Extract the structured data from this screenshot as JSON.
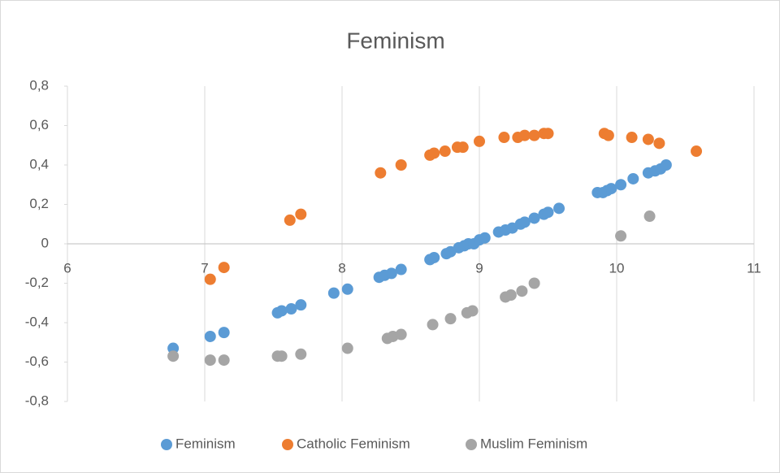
{
  "chart_data": {
    "type": "scatter",
    "title": "Feminism",
    "xlim": [
      6,
      11
    ],
    "xticks": [
      6,
      7,
      8,
      9,
      10,
      11
    ],
    "ylim": [
      -0.8,
      0.8
    ],
    "yticks": [
      {
        "value": -0.8,
        "label": "-0,8"
      },
      {
        "value": -0.6,
        "label": "-0,6"
      },
      {
        "value": -0.4,
        "label": "-0,4"
      },
      {
        "value": -0.2,
        "label": "-0,2"
      },
      {
        "value": 0,
        "label": "0"
      },
      {
        "value": 0.2,
        "label": "0,2"
      },
      {
        "value": 0.4,
        "label": "0,4"
      },
      {
        "value": 0.6,
        "label": "0,6"
      },
      {
        "value": 0.8,
        "label": "0,8"
      }
    ],
    "grid": "x",
    "legend": "bottom",
    "series": [
      {
        "name": "Feminism",
        "color": "#5b9bd5",
        "x": [
          6.77,
          7.04,
          7.14,
          7.53,
          7.56,
          7.63,
          7.7,
          7.94,
          8.04,
          8.27,
          8.31,
          8.36,
          8.43,
          8.64,
          8.67,
          8.76,
          8.79,
          8.85,
          8.89,
          8.92,
          8.96,
          9.0,
          9.04,
          9.14,
          9.19,
          9.24,
          9.3,
          9.33,
          9.4,
          9.47,
          9.5,
          9.58,
          9.86,
          9.9,
          9.93,
          9.96,
          10.03,
          10.12,
          10.23,
          10.28,
          10.32,
          10.36
        ],
        "values": [
          -0.53,
          -0.47,
          -0.45,
          -0.35,
          -0.34,
          -0.33,
          -0.31,
          -0.25,
          -0.23,
          -0.17,
          -0.16,
          -0.15,
          -0.13,
          -0.08,
          -0.07,
          -0.05,
          -0.04,
          -0.02,
          -0.01,
          0.0,
          0.0,
          0.02,
          0.03,
          0.06,
          0.07,
          0.08,
          0.1,
          0.11,
          0.13,
          0.15,
          0.16,
          0.18,
          0.26,
          0.26,
          0.27,
          0.28,
          0.3,
          0.33,
          0.36,
          0.37,
          0.38,
          0.4
        ]
      },
      {
        "name": "Catholic Feminism",
        "color": "#ed7d31",
        "x": [
          7.04,
          7.14,
          7.62,
          7.7,
          8.28,
          8.43,
          8.64,
          8.67,
          8.75,
          8.84,
          8.88,
          9.0,
          9.18,
          9.28,
          9.33,
          9.4,
          9.47,
          9.5,
          9.91,
          9.94,
          10.11,
          10.23,
          10.31,
          10.58
        ],
        "values": [
          -0.18,
          -0.12,
          0.12,
          0.15,
          0.36,
          0.4,
          0.45,
          0.46,
          0.47,
          0.49,
          0.49,
          0.52,
          0.54,
          0.54,
          0.55,
          0.55,
          0.56,
          0.56,
          0.56,
          0.55,
          0.54,
          0.53,
          0.51,
          0.47
        ]
      },
      {
        "name": "Muslim Feminism",
        "color": "#a5a5a5",
        "x": [
          6.77,
          7.04,
          7.14,
          7.53,
          7.56,
          7.7,
          8.04,
          8.33,
          8.37,
          8.43,
          8.66,
          8.79,
          8.91,
          8.95,
          9.19,
          9.23,
          9.31,
          9.4,
          10.03,
          10.24
        ],
        "values": [
          -0.57,
          -0.59,
          -0.59,
          -0.57,
          -0.57,
          -0.56,
          -0.53,
          -0.48,
          -0.47,
          -0.46,
          -0.41,
          -0.38,
          -0.35,
          -0.34,
          -0.27,
          -0.26,
          -0.24,
          -0.2,
          0.04,
          0.14
        ]
      }
    ]
  }
}
